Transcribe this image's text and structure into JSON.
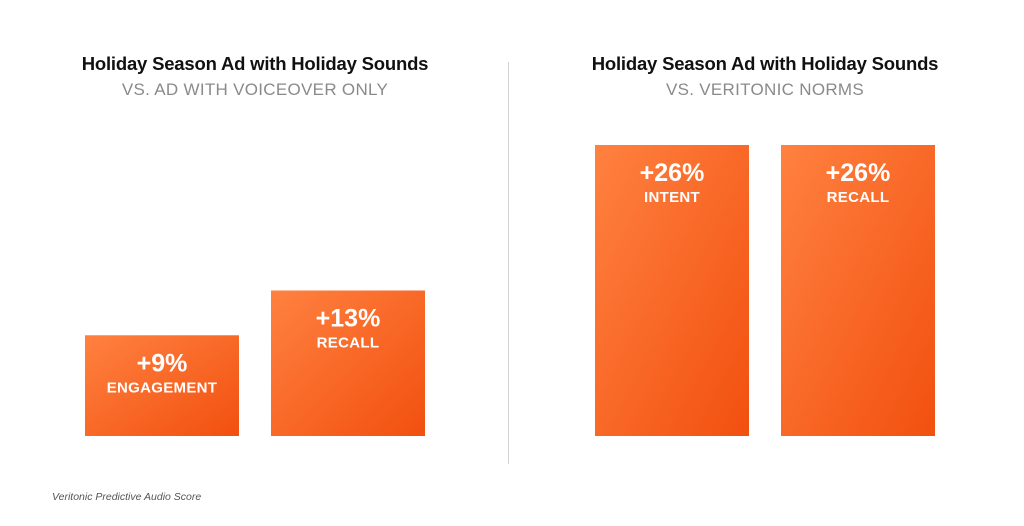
{
  "chart_data": [
    {
      "type": "bar",
      "title": "Holiday Season Ad with Holiday Sounds",
      "subtitle": "VS. AD WITH VOICEOVER ONLY",
      "categories": [
        "ENGAGEMENT",
        "RECALL"
      ],
      "values": [
        9,
        13
      ],
      "value_labels": [
        "+9%",
        "+13%"
      ],
      "ylim": [
        0,
        26
      ],
      "grid": false
    },
    {
      "type": "bar",
      "title": "Holiday Season Ad with Holiday Sounds",
      "subtitle": "VS. VERITONIC NORMS",
      "categories": [
        "INTENT",
        "RECALL"
      ],
      "values": [
        26,
        26
      ],
      "value_labels": [
        "+26%",
        "+26%"
      ],
      "ylim": [
        0,
        26
      ],
      "grid": false
    }
  ],
  "colors": {
    "bar_light": "#ff8140",
    "bar_dark": "#f2500f",
    "title": "#111111",
    "subtitle": "#8a8a8a"
  },
  "footnote": "Veritonic Predictive Audio Score"
}
